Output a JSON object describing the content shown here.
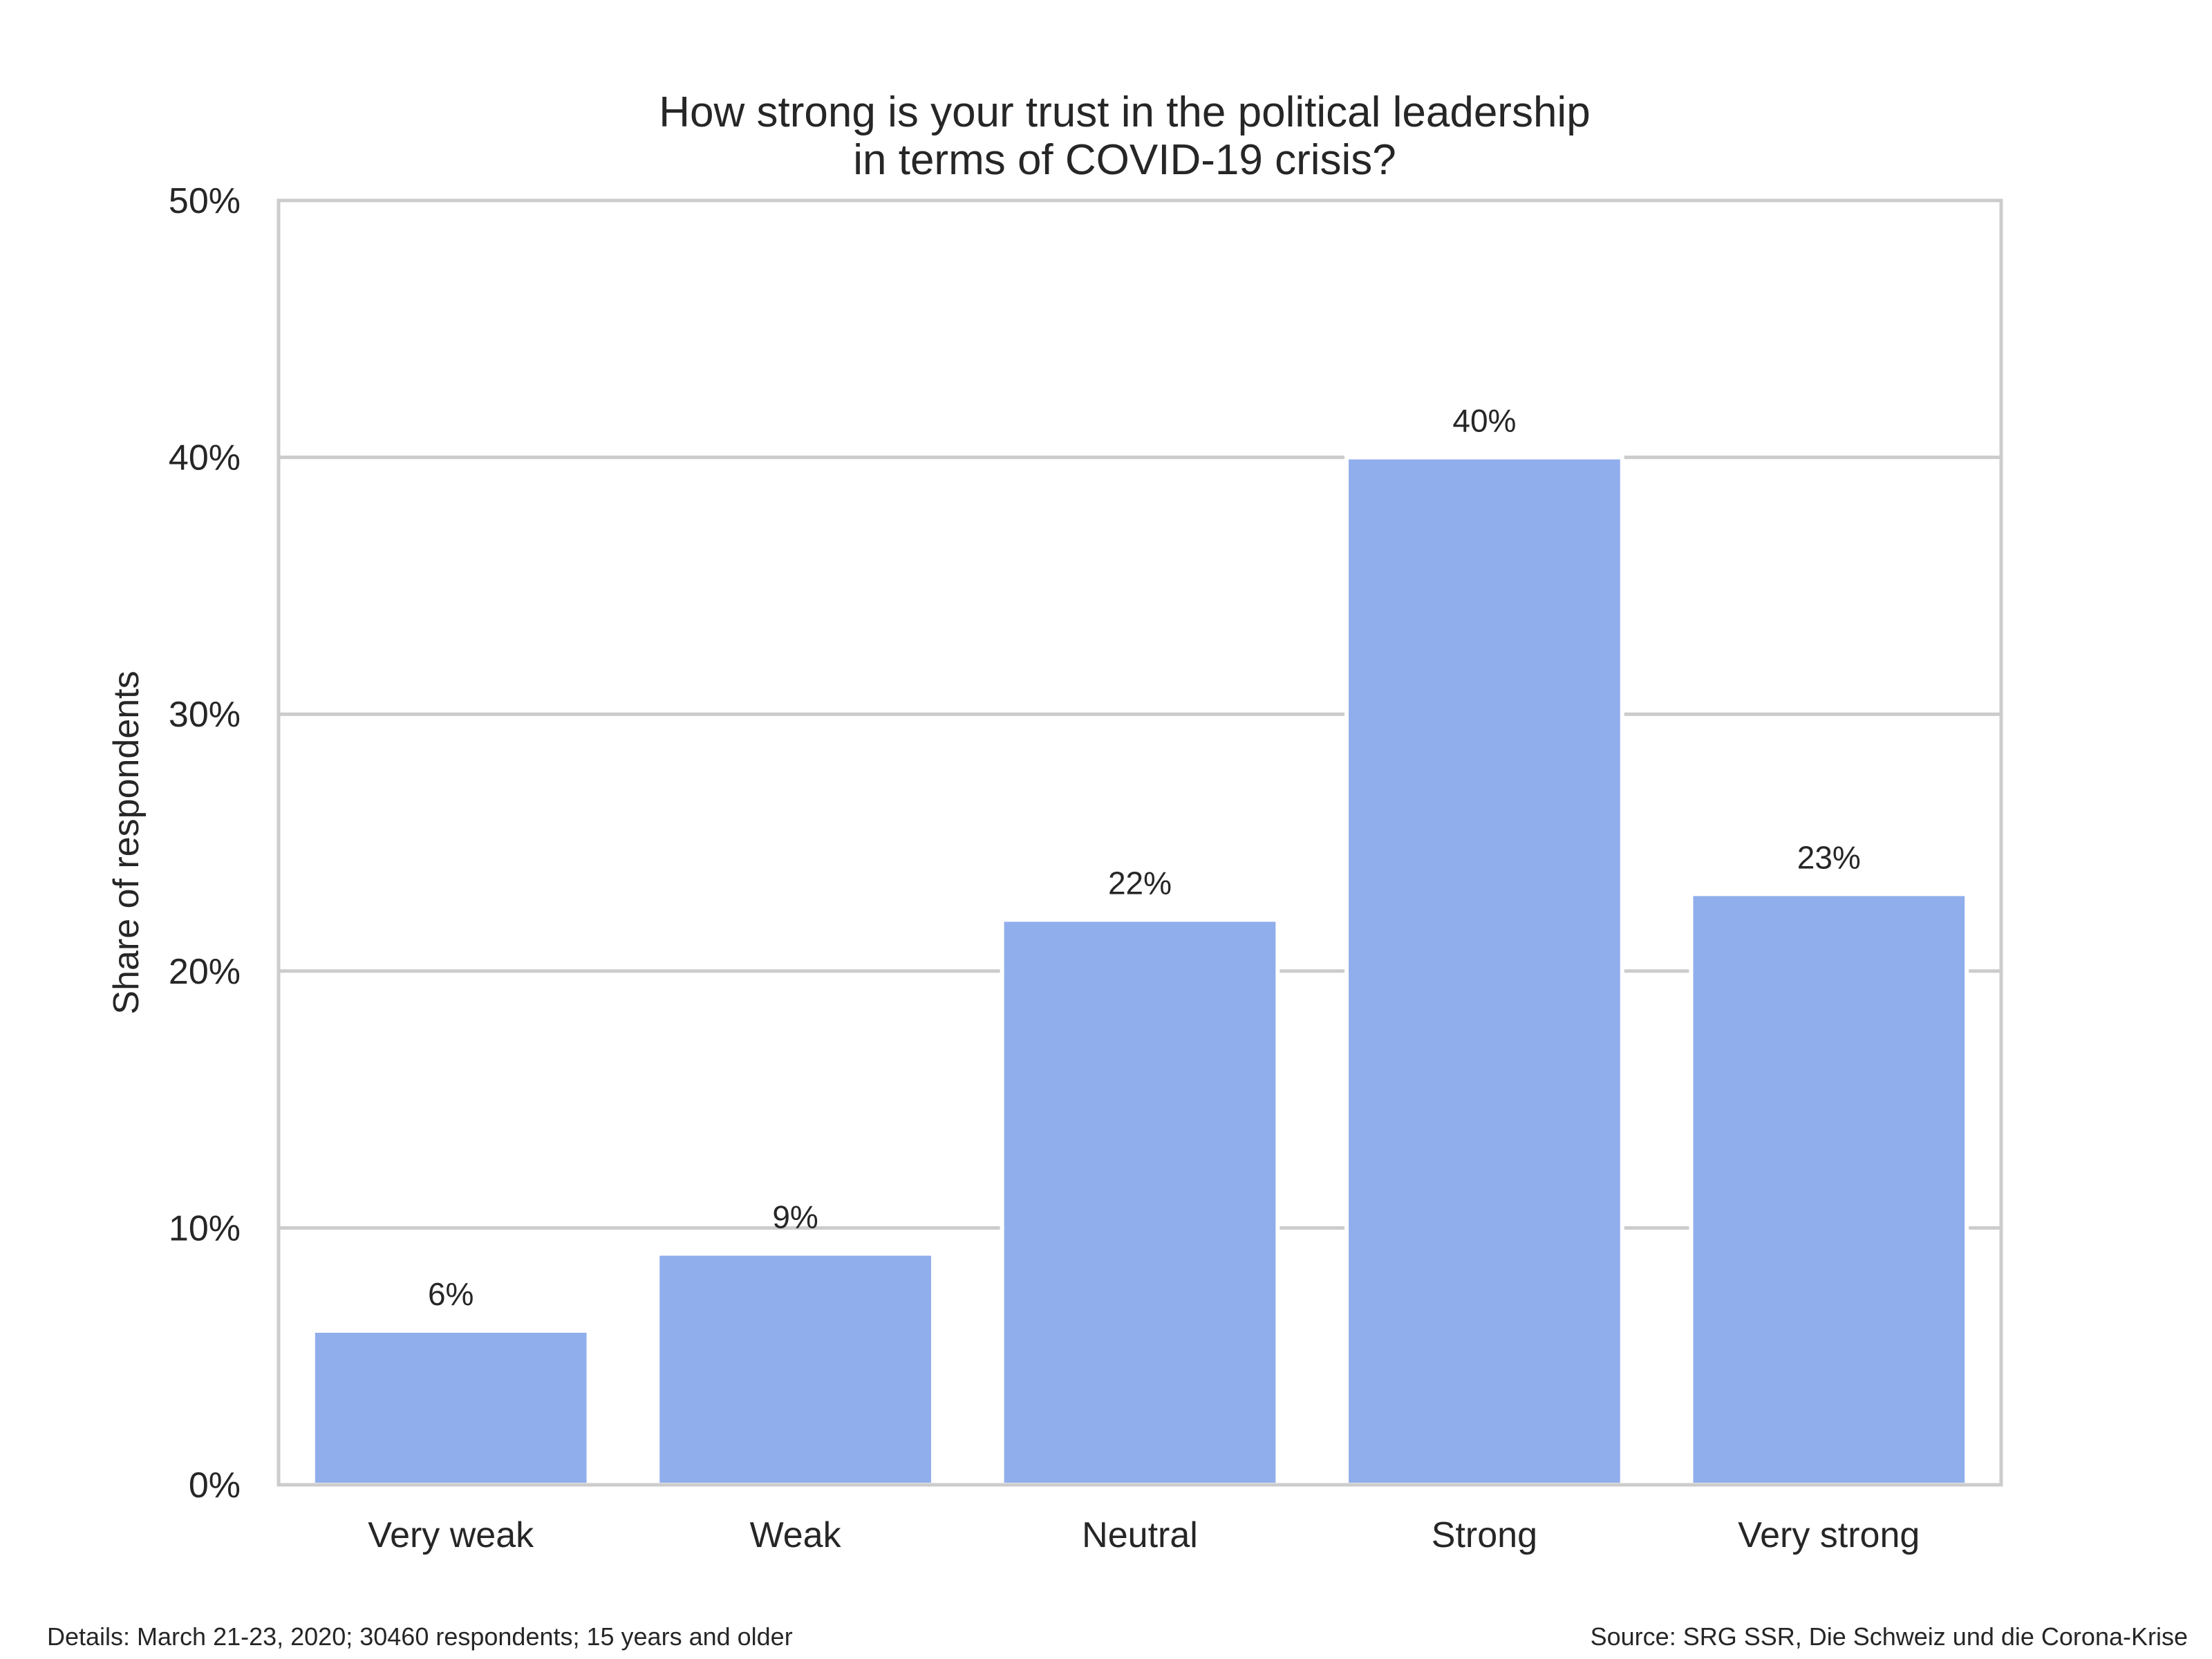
{
  "chart_data": {
    "type": "bar",
    "title_lines": [
      "How strong is your trust in the political leadership",
      "in terms of COVID-19 crisis?"
    ],
    "xlabel": "",
    "ylabel": "Share of respondents",
    "categories": [
      "Very weak",
      "Weak",
      "Neutral",
      "Strong",
      "Very strong"
    ],
    "values": [
      6,
      9,
      22,
      40,
      23
    ],
    "value_labels": [
      "6%",
      "9%",
      "22%",
      "40%",
      "23%"
    ],
    "ylim": [
      0,
      50
    ],
    "yticks": [
      0,
      10,
      20,
      30,
      40,
      50
    ],
    "ytick_labels": [
      "0%",
      "10%",
      "20%",
      "30%",
      "40%",
      "50%"
    ],
    "grid": true,
    "bar_color": "#91aeec",
    "grid_color": "#cccccc"
  },
  "footer": {
    "details": "Details: March 21-23, 2020; 30460 respondents; 15 years and older",
    "source": "Source: SRG SSR, Die Schweiz und die Corona-Krise"
  }
}
